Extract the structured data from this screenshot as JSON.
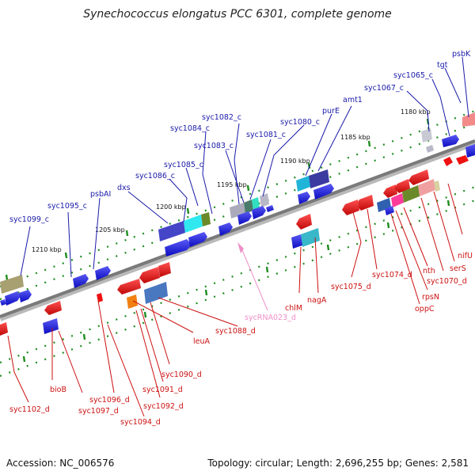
{
  "title": "Synechococcus elongatus PCC 6301, complete genome",
  "footer": {
    "accession": "Accession: NC_006576",
    "summary": "Topology: circular; Length: 2,696,255 bp; Genes: 2,581"
  },
  "colors": {
    "forward_gene": "#1515e6",
    "reverse_gene": "#ee1111",
    "forward_label": "#1a1aaa",
    "reverse_label": "#cc1111",
    "rna_label": "#ef8fc8",
    "tick": "#1e8c1e",
    "backbone": "#888888"
  },
  "ticks": [
    "1180 kbp",
    "1185 kbp",
    "1190 kbp",
    "1195 kbp",
    "1200 kbp",
    "1205 kbp",
    "1210 kbp"
  ],
  "forward_genes": [
    "psbK",
    "tgt",
    "syc1065_c",
    "syc1067_c",
    "amt1",
    "purE",
    "syc1080_c",
    "syc1081_c",
    "syc1082_c",
    "syc1083_c",
    "syc1084_c",
    "syc1085_c",
    "syc1086_c",
    "dxs",
    "psbAI",
    "syc1095_c",
    "syc1099_c"
  ],
  "reverse_genes": [
    "nifU",
    "serS",
    "syc1070_d",
    "nth",
    "rpsN",
    "oppC",
    "syc1074_d",
    "syc1075_d",
    "nagA",
    "chlM",
    "syc1088_d",
    "leuA",
    "syc1090_d",
    "syc1091_d",
    "syc1092_d",
    "syc1094_d",
    "syc1096_d",
    "syc1097_d",
    "bioB",
    "syc1102_d"
  ],
  "rna_genes": [
    "sycRNA023_d"
  ]
}
